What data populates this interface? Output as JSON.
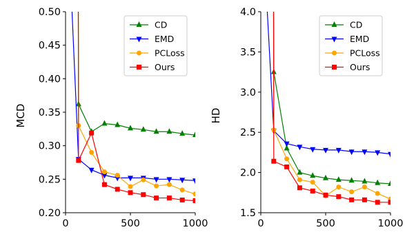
{
  "chart_data": [
    {
      "type": "line",
      "xlabel": "",
      "ylabel": "MCD",
      "xlim": [
        0,
        1000
      ],
      "ylim": [
        0.2,
        0.5
      ],
      "xticks": [
        0,
        500,
        1000
      ],
      "yticks": [
        0.2,
        0.25,
        0.3,
        0.35,
        0.4,
        0.45,
        0.5
      ],
      "ytick_labels": [
        "0.20",
        "0.25",
        "0.30",
        "0.35",
        "0.40",
        "0.45",
        "0.50"
      ],
      "legend_position": "top-right",
      "grid": false,
      "x": [
        50,
        100,
        200,
        300,
        400,
        500,
        600,
        700,
        800,
        900,
        1000
      ],
      "series": [
        {
          "name": "CD",
          "color": "#008000",
          "marker": "triangle-up",
          "values": [
            null,
            0.362,
            0.321,
            0.333,
            0.331,
            0.326,
            0.324,
            0.321,
            0.321,
            0.318,
            0.316
          ]
        },
        {
          "name": "EMD",
          "color": "#0000ff",
          "marker": "triangle-down",
          "values": [
            0.5,
            0.28,
            0.264,
            0.256,
            0.252,
            0.252,
            0.252,
            0.25,
            0.25,
            0.249,
            0.248
          ]
        },
        {
          "name": "PCLoss",
          "color": "#ffa500",
          "marker": "circle",
          "values": [
            null,
            0.33,
            0.29,
            0.261,
            0.256,
            0.239,
            0.249,
            0.24,
            0.242,
            0.234,
            0.228
          ]
        },
        {
          "name": "Ours",
          "color": "#ff0000",
          "marker": "square",
          "values": [
            null,
            0.278,
            0.319,
            0.242,
            0.235,
            0.23,
            0.227,
            0.222,
            0.222,
            0.219,
            0.218
          ]
        }
      ],
      "offscale_starts": {
        "CD": 0.55,
        "PCLoss": 0.55,
        "Ours": 0.55
      }
    },
    {
      "type": "line",
      "xlabel": "",
      "ylabel": "HD",
      "xlim": [
        0,
        1000
      ],
      "ylim": [
        1.5,
        4.0
      ],
      "xticks": [
        0,
        500,
        1000
      ],
      "yticks": [
        1.5,
        2.0,
        2.5,
        3.0,
        3.5,
        4.0
      ],
      "ytick_labels": [
        "1.5",
        "2.0",
        "2.5",
        "3.0",
        "3.5",
        "4.0"
      ],
      "legend_position": "top-right",
      "grid": false,
      "x": [
        50,
        100,
        200,
        300,
        400,
        500,
        600,
        700,
        800,
        900,
        1000
      ],
      "series": [
        {
          "name": "CD",
          "color": "#008000",
          "marker": "triangle-up",
          "values": [
            null,
            3.25,
            2.3,
            2.0,
            1.96,
            1.93,
            1.91,
            1.9,
            1.89,
            1.87,
            1.86
          ]
        },
        {
          "name": "EMD",
          "color": "#0000ff",
          "marker": "triangle-down",
          "values": [
            4.0,
            2.52,
            2.36,
            2.32,
            2.29,
            2.28,
            2.28,
            2.26,
            2.26,
            2.25,
            2.23
          ]
        },
        {
          "name": "PCLoss",
          "color": "#ffa500",
          "marker": "circle",
          "values": [
            null,
            2.53,
            2.17,
            1.91,
            1.88,
            1.71,
            1.82,
            1.76,
            1.82,
            1.74,
            1.67
          ]
        },
        {
          "name": "Ours",
          "color": "#ff0000",
          "marker": "square",
          "values": [
            null,
            2.14,
            2.07,
            1.81,
            1.77,
            1.72,
            1.7,
            1.66,
            1.66,
            1.63,
            1.63
          ]
        }
      ],
      "offscale_starts": {
        "CD": 4.3,
        "PCLoss": 4.3,
        "Ours": 4.3
      }
    }
  ]
}
